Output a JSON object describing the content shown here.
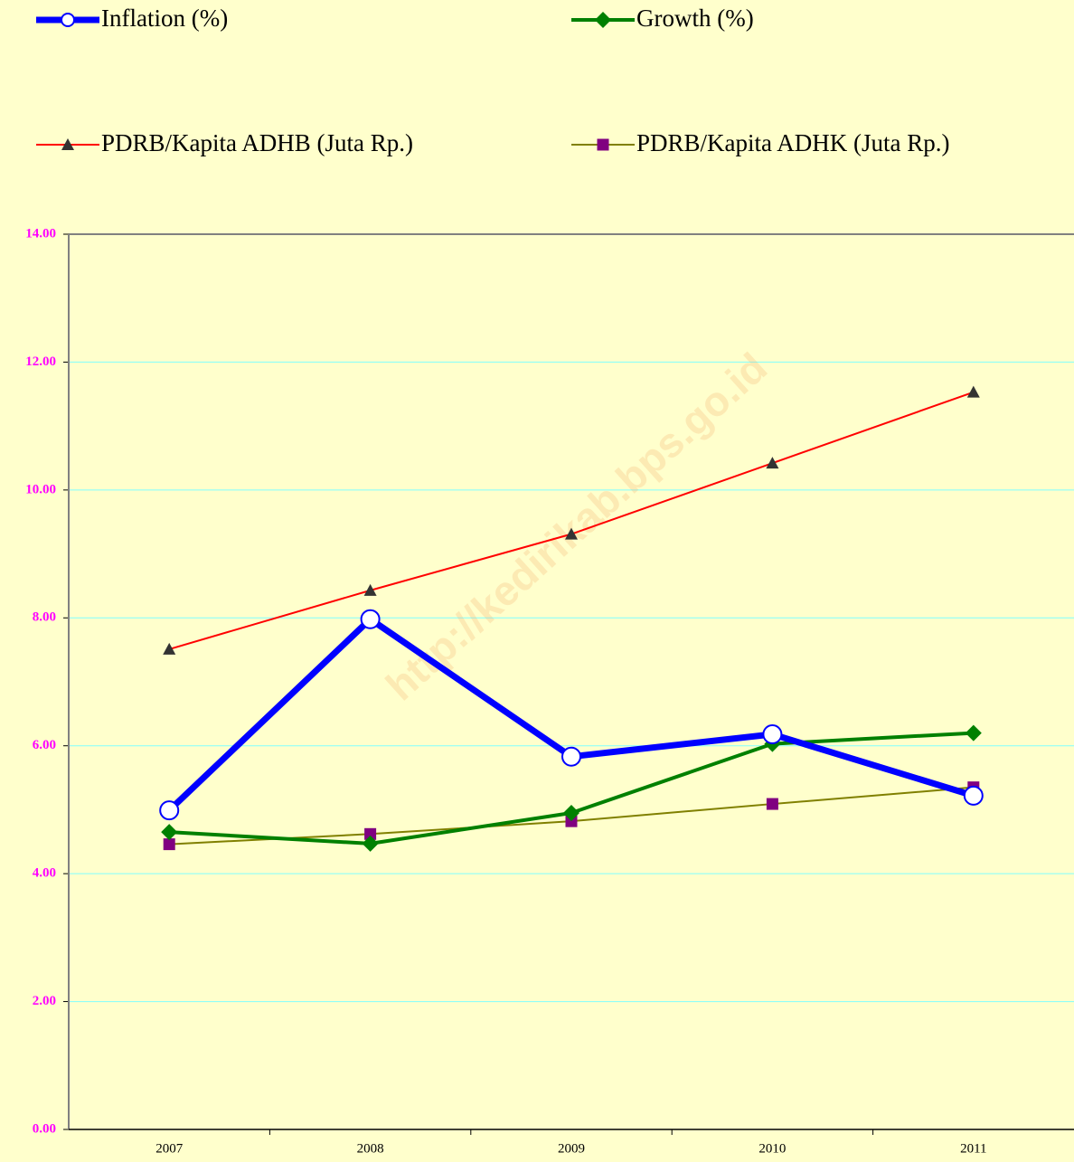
{
  "chart_data": {
    "type": "line",
    "categories": [
      "2007",
      "2008",
      "2009",
      "2010",
      "2011"
    ],
    "series": [
      {
        "name": "Inflation (%)",
        "color": "#0000ff",
        "marker": "circle",
        "line_width": 7,
        "values": [
          4.99,
          7.98,
          5.83,
          6.18,
          5.22
        ]
      },
      {
        "name": "Growth (%)",
        "color": "#008000",
        "marker": "diamond",
        "line_width": 4,
        "values": [
          4.65,
          4.47,
          4.95,
          6.03,
          6.2
        ]
      },
      {
        "name": "PDRB/Kapita ADHB (Juta Rp.)",
        "color": "#ff0000",
        "marker": "triangle",
        "line_width": 2,
        "values": [
          7.51,
          8.43,
          9.31,
          10.42,
          11.53
        ]
      },
      {
        "name": "PDRB/Kapita ADHK (Juta Rp.)",
        "color": "#808000",
        "marker": "square",
        "line_width": 2,
        "values": [
          4.46,
          4.62,
          4.82,
          5.09,
          5.35
        ]
      }
    ],
    "ylim": [
      0,
      14
    ],
    "yticks": [
      {
        "value": 0,
        "label": "0.00"
      },
      {
        "value": 2,
        "label": "2.00"
      },
      {
        "value": 4,
        "label": "4.00"
      },
      {
        "value": 6,
        "label": "6.00"
      },
      {
        "value": 8,
        "label": "8.00"
      },
      {
        "value": 10,
        "label": "10.00"
      },
      {
        "value": 12,
        "label": "12.00"
      },
      {
        "value": 14,
        "label": "14.00"
      }
    ],
    "grid": true,
    "legend": "top",
    "annotation": "http://kedirikab.bps.go.id"
  }
}
